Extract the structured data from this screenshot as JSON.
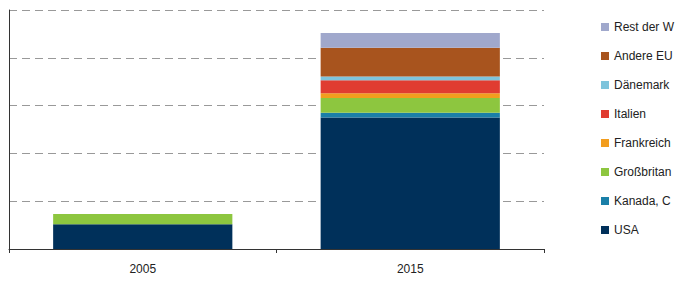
{
  "chart_data": {
    "type": "bar",
    "stacked": true,
    "grid": true,
    "legend": "right",
    "tick_labels": "x",
    "categories": [
      "2005",
      "2015"
    ],
    "ylim": [
      0,
      5
    ],
    "yticks": [
      0,
      1,
      2,
      3,
      4
    ],
    "series": [
      {
        "name": "USA",
        "color": "#00305a",
        "values": [
          0.52,
          2.75
        ]
      },
      {
        "name": "Kanada, C",
        "color": "#1a7fa8",
        "values": [
          0,
          0.1
        ]
      },
      {
        "name": "Großbritan",
        "color": "#8dc63f",
        "values": [
          0.21,
          0.31
        ]
      },
      {
        "name": "Frankreich",
        "color": "#f29d1e",
        "values": [
          0,
          0.1
        ]
      },
      {
        "name": "Italien",
        "color": "#e03c31",
        "values": [
          0,
          0.27
        ]
      },
      {
        "name": "Dänemark",
        "color": "#7ec4dc",
        "values": [
          0,
          0.08
        ]
      },
      {
        "name": "Andere EU",
        "color": "#a8541e",
        "values": [
          0,
          0.6
        ]
      },
      {
        "name": "Rest der W",
        "color": "#a0a8cc",
        "values": [
          0,
          0.31
        ]
      }
    ]
  }
}
